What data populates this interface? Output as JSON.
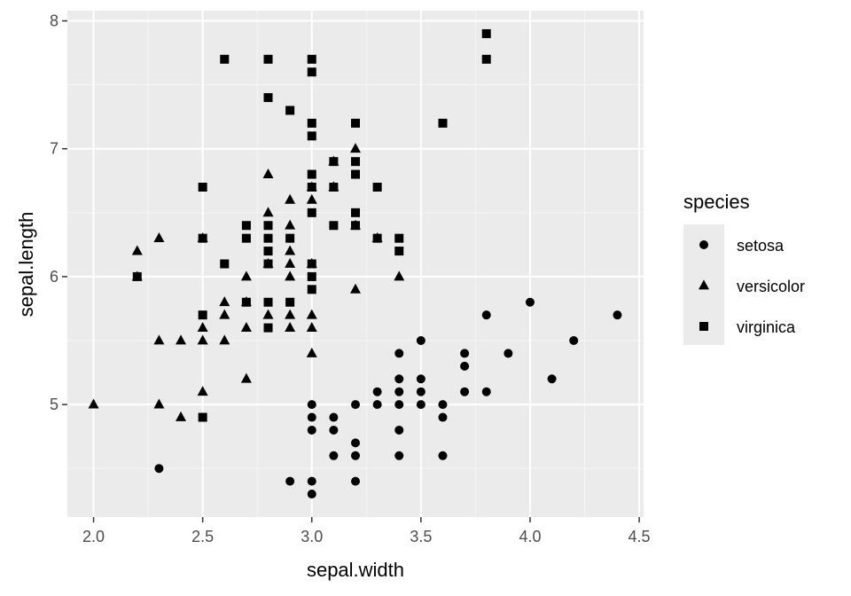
{
  "chart_data": {
    "type": "scatter",
    "xlabel": "sepal.width",
    "ylabel": "sepal.length",
    "xlim": [
      1.88,
      4.52
    ],
    "ylim": [
      4.12,
      8.08
    ],
    "x_ticks": [
      "2.0",
      "2.5",
      "3.0",
      "3.5",
      "4.0",
      "4.5"
    ],
    "y_ticks": [
      "5",
      "6",
      "7",
      "8"
    ],
    "grid": true,
    "legend_title": "species",
    "legend_position": "right",
    "colors": {
      "panel": "#ebebeb",
      "grid_major": "#ffffff",
      "grid_minor": "#f5f5f5",
      "marker": "#000000",
      "tick_text": "#4d4d4d"
    },
    "series": [
      {
        "name": "setosa",
        "marker": "circle",
        "points": [
          [
            2.3,
            4.5
          ],
          [
            2.9,
            4.4
          ],
          [
            3.0,
            4.4
          ],
          [
            3.0,
            4.3
          ],
          [
            3.2,
            4.4
          ],
          [
            3.0,
            4.8
          ],
          [
            3.0,
            4.9
          ],
          [
            3.0,
            5.0
          ],
          [
            3.1,
            4.8
          ],
          [
            3.1,
            4.9
          ],
          [
            3.1,
            4.6
          ],
          [
            3.2,
            5.0
          ],
          [
            3.2,
            4.7
          ],
          [
            3.2,
            4.6
          ],
          [
            3.3,
            5.1
          ],
          [
            3.3,
            5.0
          ],
          [
            3.4,
            5.4
          ],
          [
            3.4,
            5.2
          ],
          [
            3.4,
            5.1
          ],
          [
            3.4,
            5.0
          ],
          [
            3.4,
            4.8
          ],
          [
            3.4,
            4.6
          ],
          [
            3.5,
            5.5
          ],
          [
            3.5,
            5.2
          ],
          [
            3.5,
            5.1
          ],
          [
            3.5,
            5.0
          ],
          [
            3.6,
            5.0
          ],
          [
            3.6,
            4.9
          ],
          [
            3.6,
            4.6
          ],
          [
            3.7,
            5.4
          ],
          [
            3.7,
            5.3
          ],
          [
            3.7,
            5.1
          ],
          [
            3.8,
            5.7
          ],
          [
            3.8,
            5.1
          ],
          [
            3.9,
            5.4
          ],
          [
            4.0,
            5.8
          ],
          [
            4.1,
            5.2
          ],
          [
            4.2,
            5.5
          ],
          [
            4.4,
            5.7
          ]
        ]
      },
      {
        "name": "versicolor",
        "marker": "triangle",
        "points": [
          [
            2.0,
            5.0
          ],
          [
            2.2,
            6.2
          ],
          [
            2.2,
            6.0
          ],
          [
            2.3,
            6.3
          ],
          [
            2.3,
            5.5
          ],
          [
            2.3,
            5.0
          ],
          [
            2.4,
            5.5
          ],
          [
            2.4,
            4.9
          ],
          [
            2.5,
            6.3
          ],
          [
            2.5,
            5.6
          ],
          [
            2.5,
            5.5
          ],
          [
            2.5,
            5.1
          ],
          [
            2.6,
            5.8
          ],
          [
            2.6,
            5.7
          ],
          [
            2.6,
            5.5
          ],
          [
            2.7,
            6.0
          ],
          [
            2.7,
            5.8
          ],
          [
            2.7,
            5.6
          ],
          [
            2.7,
            5.2
          ],
          [
            2.8,
            6.8
          ],
          [
            2.8,
            6.5
          ],
          [
            2.8,
            6.1
          ],
          [
            2.8,
            5.7
          ],
          [
            2.9,
            6.6
          ],
          [
            2.9,
            6.4
          ],
          [
            2.9,
            6.2
          ],
          [
            2.9,
            6.1
          ],
          [
            2.9,
            6.0
          ],
          [
            2.9,
            5.7
          ],
          [
            2.9,
            5.6
          ],
          [
            3.0,
            6.7
          ],
          [
            3.0,
            6.6
          ],
          [
            3.0,
            6.1
          ],
          [
            3.0,
            5.7
          ],
          [
            3.0,
            5.6
          ],
          [
            3.0,
            5.4
          ],
          [
            3.1,
            6.9
          ],
          [
            3.1,
            6.7
          ],
          [
            3.2,
            7.0
          ],
          [
            3.2,
            6.4
          ],
          [
            3.2,
            5.9
          ],
          [
            3.3,
            6.3
          ],
          [
            3.4,
            6.0
          ]
        ]
      },
      {
        "name": "virginica",
        "marker": "square",
        "points": [
          [
            2.2,
            6.0
          ],
          [
            2.5,
            6.7
          ],
          [
            2.5,
            6.3
          ],
          [
            2.5,
            5.7
          ],
          [
            2.5,
            4.9
          ],
          [
            2.6,
            7.7
          ],
          [
            2.6,
            6.1
          ],
          [
            2.7,
            6.4
          ],
          [
            2.7,
            6.3
          ],
          [
            2.7,
            5.8
          ],
          [
            2.8,
            7.7
          ],
          [
            2.8,
            7.4
          ],
          [
            2.8,
            6.4
          ],
          [
            2.8,
            6.3
          ],
          [
            2.8,
            6.2
          ],
          [
            2.8,
            6.1
          ],
          [
            2.8,
            5.8
          ],
          [
            2.8,
            5.6
          ],
          [
            2.9,
            7.3
          ],
          [
            2.9,
            6.3
          ],
          [
            2.9,
            5.8
          ],
          [
            3.0,
            7.7
          ],
          [
            3.0,
            7.6
          ],
          [
            3.0,
            7.2
          ],
          [
            3.0,
            7.1
          ],
          [
            3.0,
            6.8
          ],
          [
            3.0,
            6.7
          ],
          [
            3.0,
            6.5
          ],
          [
            3.0,
            6.1
          ],
          [
            3.0,
            6.0
          ],
          [
            3.0,
            5.9
          ],
          [
            3.1,
            6.9
          ],
          [
            3.1,
            6.7
          ],
          [
            3.1,
            6.4
          ],
          [
            3.2,
            7.2
          ],
          [
            3.2,
            6.9
          ],
          [
            3.2,
            6.8
          ],
          [
            3.2,
            6.5
          ],
          [
            3.2,
            6.4
          ],
          [
            3.3,
            6.7
          ],
          [
            3.3,
            6.3
          ],
          [
            3.4,
            6.3
          ],
          [
            3.4,
            6.2
          ],
          [
            3.6,
            7.2
          ],
          [
            3.8,
            7.9
          ],
          [
            3.8,
            7.7
          ]
        ]
      }
    ]
  }
}
